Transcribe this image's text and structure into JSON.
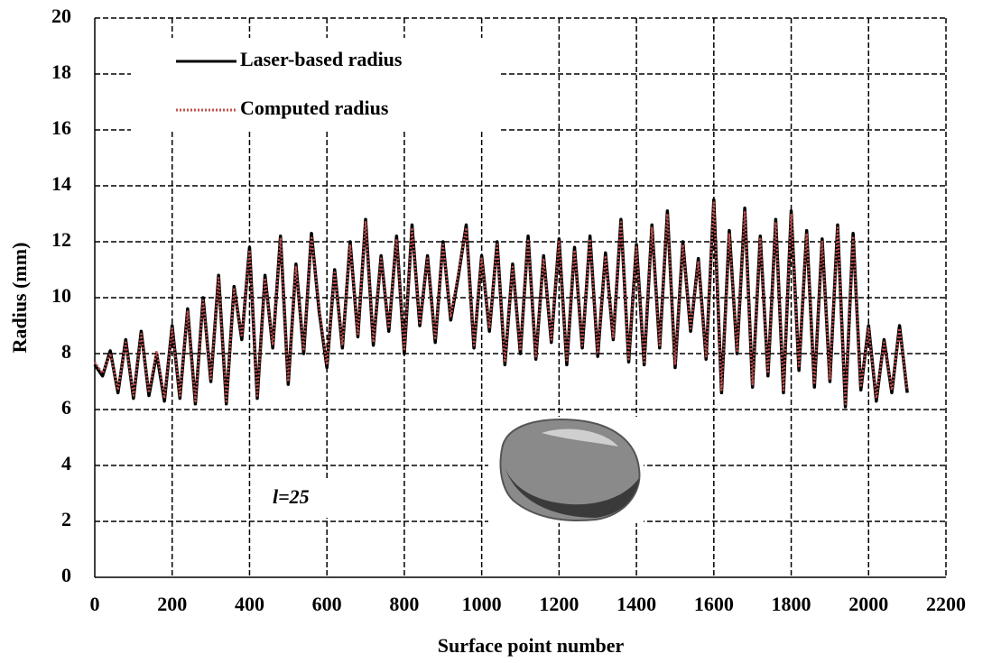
{
  "chart_data": {
    "type": "line",
    "xlabel": "Surface point number",
    "ylabel": "Radius (mm)",
    "annotation": "l=25",
    "x": [
      0,
      20,
      40,
      60,
      80,
      100,
      120,
      140,
      160,
      180,
      200,
      220,
      240,
      260,
      280,
      300,
      320,
      340,
      360,
      380,
      400,
      420,
      440,
      460,
      480,
      500,
      520,
      540,
      560,
      580,
      600,
      620,
      640,
      660,
      680,
      700,
      720,
      740,
      760,
      780,
      800,
      820,
      840,
      860,
      880,
      900,
      920,
      940,
      960,
      980,
      1000,
      1020,
      1040,
      1060,
      1080,
      1100,
      1120,
      1140,
      1160,
      1180,
      1200,
      1220,
      1240,
      1260,
      1280,
      1300,
      1320,
      1340,
      1360,
      1380,
      1400,
      1420,
      1440,
      1460,
      1480,
      1500,
      1520,
      1540,
      1560,
      1580,
      1600,
      1620,
      1640,
      1660,
      1680,
      1700,
      1720,
      1740,
      1760,
      1780,
      1800,
      1820,
      1840,
      1860,
      1880,
      1900,
      1920,
      1940,
      1960,
      1980,
      2000,
      2020,
      2040,
      2060,
      2080,
      2100
    ],
    "series": [
      {
        "name": "Laser-based radius",
        "color": "#000000",
        "style": "solid",
        "values": [
          7.6,
          7.2,
          8.1,
          6.6,
          8.5,
          6.4,
          8.8,
          6.5,
          8.0,
          6.3,
          9.0,
          6.4,
          9.6,
          6.2,
          10.0,
          7.0,
          10.8,
          6.2,
          10.4,
          8.5,
          11.8,
          6.4,
          10.8,
          8.2,
          12.2,
          6.9,
          11.2,
          8.0,
          12.3,
          9.5,
          7.5,
          11.0,
          8.2,
          12.0,
          8.6,
          12.8,
          8.3,
          11.5,
          8.8,
          12.2,
          8.0,
          12.6,
          9.0,
          11.5,
          8.4,
          12.0,
          9.2,
          10.8,
          12.6,
          8.2,
          11.5,
          8.8,
          12.0,
          7.6,
          11.2,
          8.0,
          12.2,
          7.8,
          11.5,
          8.4,
          12.1,
          7.6,
          11.8,
          8.2,
          12.2,
          7.9,
          11.6,
          8.5,
          12.8,
          7.7,
          11.9,
          7.6,
          12.6,
          8.2,
          13.1,
          7.5,
          12.0,
          8.8,
          11.4,
          7.8,
          13.5,
          6.6,
          12.4,
          8.0,
          13.2,
          6.8,
          12.2,
          7.2,
          12.8,
          6.6,
          13.1,
          7.4,
          12.4,
          6.8,
          12.1,
          7.0,
          12.6,
          6.1,
          12.3,
          6.7,
          9.0,
          6.3,
          8.5,
          6.6,
          9.0,
          6.6
        ]
      },
      {
        "name": "Computed radius",
        "color": "#c0504d",
        "style": "dotted",
        "values": [
          7.7,
          7.3,
          8.0,
          6.7,
          8.4,
          6.5,
          8.7,
          6.6,
          8.1,
          6.4,
          8.9,
          6.5,
          9.5,
          6.3,
          9.9,
          7.1,
          10.7,
          6.3,
          10.3,
          8.6,
          11.7,
          6.5,
          10.7,
          8.3,
          12.1,
          7.0,
          11.1,
          8.1,
          12.2,
          9.6,
          7.6,
          10.9,
          8.3,
          11.9,
          8.7,
          12.7,
          8.4,
          11.4,
          8.9,
          12.1,
          8.1,
          12.5,
          9.1,
          11.4,
          8.5,
          11.9,
          9.3,
          10.9,
          12.5,
          8.3,
          11.4,
          8.9,
          11.9,
          7.7,
          11.1,
          8.1,
          12.1,
          7.9,
          11.4,
          8.5,
          12.0,
          7.7,
          11.7,
          8.3,
          12.1,
          8.0,
          11.5,
          8.6,
          12.7,
          7.8,
          11.8,
          7.7,
          12.5,
          8.3,
          13.0,
          7.6,
          11.9,
          8.9,
          11.3,
          7.9,
          13.4,
          6.7,
          12.3,
          8.1,
          13.1,
          6.9,
          12.1,
          7.3,
          12.7,
          6.7,
          13.0,
          7.5,
          12.3,
          6.9,
          12.0,
          7.1,
          12.5,
          6.2,
          12.2,
          6.8,
          8.9,
          6.4,
          8.4,
          6.7,
          8.9,
          6.7
        ]
      }
    ],
    "xlim": [
      0,
      2200
    ],
    "xticks": [
      0,
      200,
      400,
      600,
      800,
      1000,
      1200,
      1400,
      1600,
      1800,
      2000,
      2200
    ],
    "ylim": [
      0,
      20
    ],
    "yticks": [
      0,
      2,
      4,
      6,
      8,
      10,
      12,
      14,
      16,
      18,
      20
    ],
    "grid": true,
    "legend": "upper left"
  }
}
